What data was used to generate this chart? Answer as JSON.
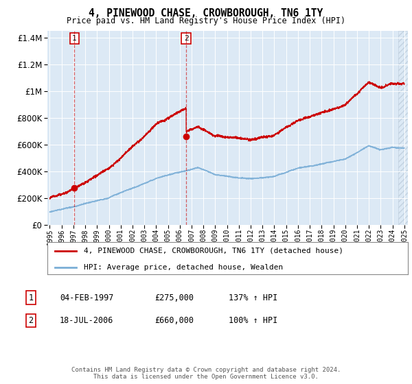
{
  "title": "4, PINEWOOD CHASE, CROWBOROUGH, TN6 1TY",
  "subtitle": "Price paid vs. HM Land Registry's House Price Index (HPI)",
  "legend_line1": "4, PINEWOOD CHASE, CROWBOROUGH, TN6 1TY (detached house)",
  "legend_line2": "HPI: Average price, detached house, Wealden",
  "annotation1_label": "1",
  "annotation1_date": "04-FEB-1997",
  "annotation1_price": "£275,000",
  "annotation1_hpi": "137% ↑ HPI",
  "annotation1_year": 1997.08,
  "annotation1_value": 275000,
  "annotation2_label": "2",
  "annotation2_date": "18-JUL-2006",
  "annotation2_price": "£660,000",
  "annotation2_hpi": "100% ↑ HPI",
  "annotation2_year": 2006.54,
  "annotation2_value": 660000,
  "ylim": [
    0,
    1450000
  ],
  "xlim_start": 1994.8,
  "xlim_end": 2025.3,
  "plot_bg_color": "#dce9f5",
  "red_line_color": "#cc0000",
  "blue_line_color": "#7aaed6",
  "footer": "Contains HM Land Registry data © Crown copyright and database right 2024.\nThis data is licensed under the Open Government Licence v3.0."
}
